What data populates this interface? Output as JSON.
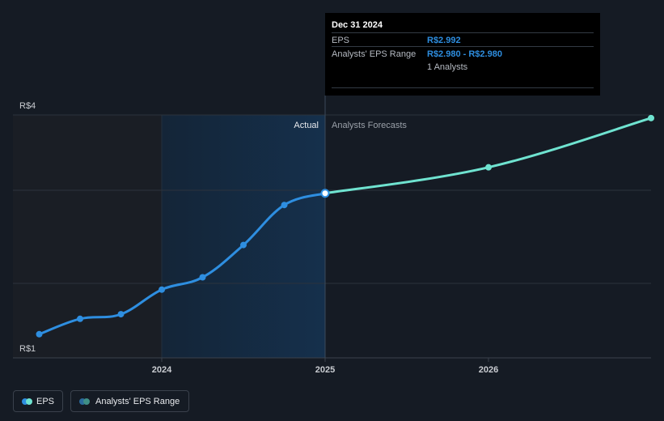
{
  "chart_data": {
    "type": "line",
    "y_ticks": [
      {
        "label": "R$4",
        "value": 4
      },
      {
        "label": "R$1",
        "value": 1
      }
    ],
    "ylim": [
      1,
      4
    ],
    "x_ticks": [
      {
        "label": "2024",
        "value": 2024.0
      },
      {
        "label": "2025",
        "value": 2025.0
      },
      {
        "label": "2026",
        "value": 2026.0
      }
    ],
    "xlim": [
      2023.08,
      2027.0
    ],
    "highlight_range": [
      2024.0,
      2025.0
    ],
    "divider_x": 2025.0,
    "region_labels": {
      "actual": "Actual",
      "forecast": "Analysts Forecasts"
    },
    "series": [
      {
        "name": "EPS",
        "color": "#2e8ee0",
        "points": [
          {
            "x": 2023.25,
            "y": 1.16
          },
          {
            "x": 2023.5,
            "y": 1.36
          },
          {
            "x": 2023.75,
            "y": 1.42
          },
          {
            "x": 2024.0,
            "y": 1.74
          },
          {
            "x": 2024.25,
            "y": 1.9
          },
          {
            "x": 2024.5,
            "y": 2.32
          },
          {
            "x": 2024.75,
            "y": 2.84
          },
          {
            "x": 2025.0,
            "y": 2.992
          }
        ]
      },
      {
        "name": "Analysts' EPS Range",
        "color": "#6fe3d0",
        "points": [
          {
            "x": 2025.0,
            "y": 2.992
          },
          {
            "x": 2026.0,
            "y": 3.33
          },
          {
            "x": 2027.0,
            "y": 3.97
          }
        ]
      }
    ]
  },
  "tooltip": {
    "date": "Dec 31 2024",
    "eps_label": "EPS",
    "eps_value": "R$2.992",
    "range_label": "Analysts' EPS Range",
    "range_value": "R$2.980 - R$2.980",
    "analysts": "1 Analysts"
  },
  "legend": {
    "eps_label": "EPS",
    "range_label": "Analysts' EPS Range"
  },
  "colors": {
    "background": "#151b24",
    "actual_region": "#1a1e25",
    "highlight_region": "#16304a",
    "grid": "#2c333d",
    "eps": "#2e8ee0",
    "forecast": "#6fe3d0",
    "tick_text": "#c9ccd1"
  }
}
